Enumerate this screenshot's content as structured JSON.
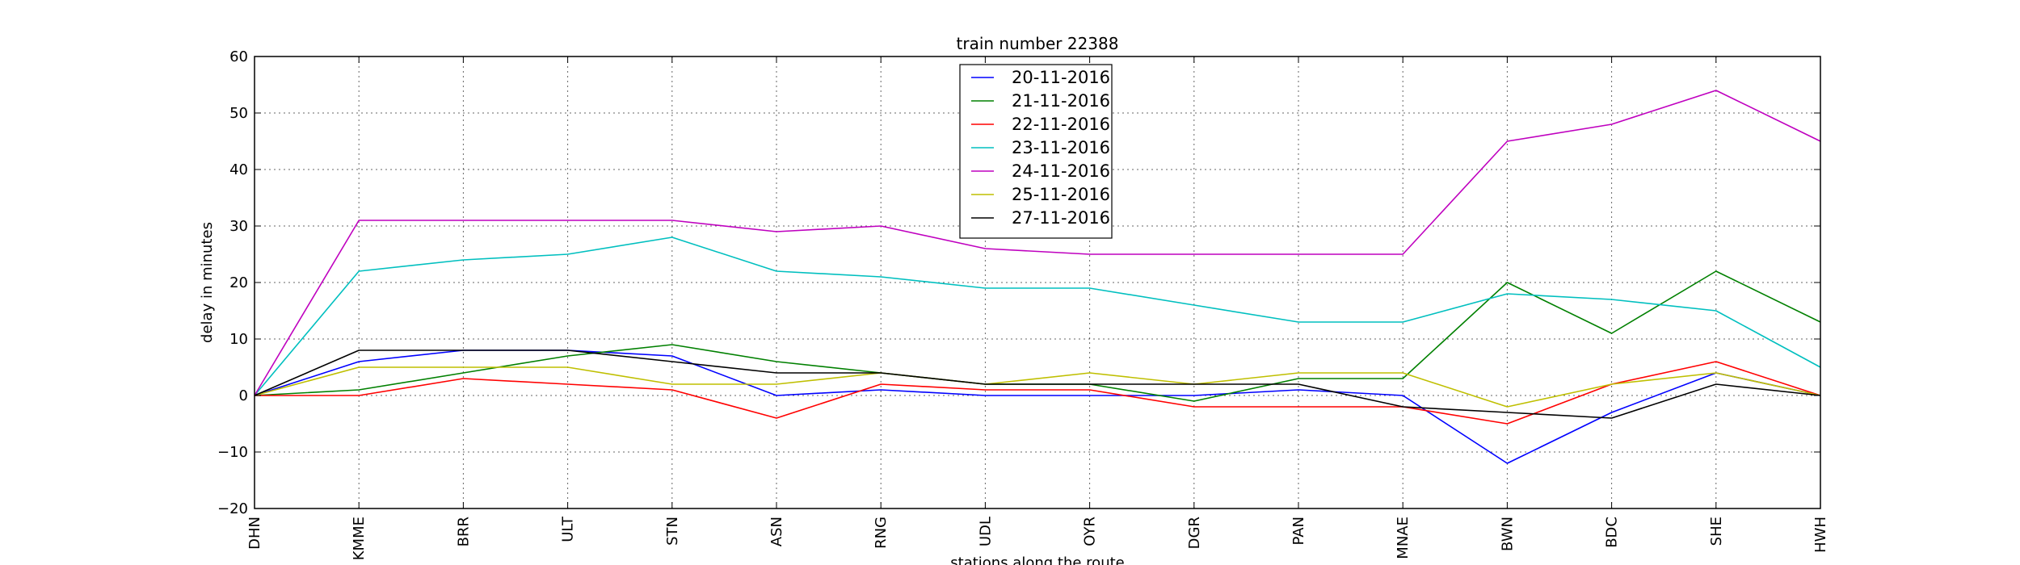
{
  "chart_data": {
    "type": "line",
    "title": "train number 22388",
    "xlabel": "stations along the route",
    "ylabel": "delay in minutes",
    "categories": [
      "DHN",
      "KMME",
      "BRR",
      "ULT",
      "STN",
      "ASN",
      "RNG",
      "UDL",
      "OYR",
      "DGR",
      "PAN",
      "MNAE",
      "BWN",
      "BDC",
      "SHE",
      "HWH"
    ],
    "ylim": [
      -20,
      60
    ],
    "yticks": [
      -20,
      -10,
      0,
      10,
      20,
      30,
      40,
      50,
      60
    ],
    "ytick_labels": [
      "−20",
      "−10",
      "0",
      "10",
      "20",
      "30",
      "40",
      "50",
      "60"
    ],
    "grid": true,
    "legend_position": "top-center",
    "series": [
      {
        "name": "20-11-2016",
        "color": "#0000ff",
        "values": [
          0,
          6,
          8,
          8,
          7,
          0,
          1,
          0,
          0,
          0,
          1,
          0,
          -12,
          -3,
          4,
          0
        ]
      },
      {
        "name": "21-11-2016",
        "color": "#008000",
        "values": [
          0,
          1,
          4,
          7,
          9,
          6,
          4,
          2,
          2,
          -1,
          3,
          3,
          20,
          11,
          22,
          13
        ]
      },
      {
        "name": "22-11-2016",
        "color": "#ff0000",
        "values": [
          0,
          0,
          3,
          2,
          1,
          -4,
          2,
          1,
          1,
          -2,
          -2,
          -2,
          -5,
          2,
          6,
          0
        ]
      },
      {
        "name": "23-11-2016",
        "color": "#00bfbf",
        "values": [
          0,
          22,
          24,
          25,
          28,
          22,
          21,
          19,
          19,
          16,
          13,
          13,
          18,
          17,
          15,
          5
        ]
      },
      {
        "name": "24-11-2016",
        "color": "#bf00bf",
        "values": [
          0,
          31,
          31,
          31,
          31,
          29,
          30,
          26,
          25,
          25,
          25,
          25,
          45,
          48,
          54,
          45
        ]
      },
      {
        "name": "25-11-2016",
        "color": "#bfbf00",
        "values": [
          0,
          5,
          5,
          5,
          2,
          2,
          4,
          2,
          4,
          2,
          4,
          4,
          -2,
          2,
          4,
          0
        ]
      },
      {
        "name": "27-11-2016",
        "color": "#000000",
        "values": [
          0,
          8,
          8,
          8,
          6,
          4,
          4,
          2,
          2,
          2,
          2,
          -2,
          -3,
          -4,
          2,
          0
        ]
      }
    ]
  }
}
